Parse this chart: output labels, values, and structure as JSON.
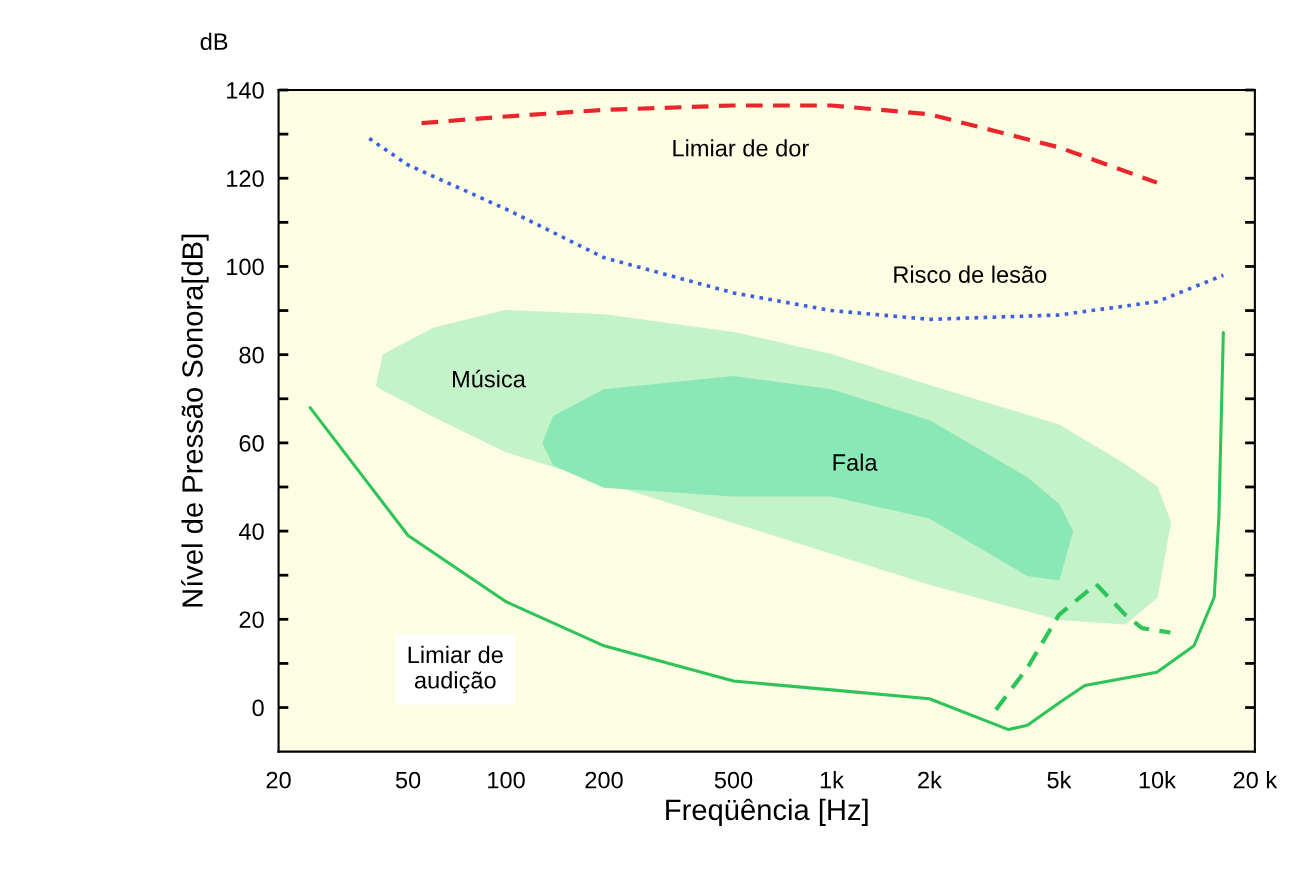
{
  "chart_data": {
    "type": "line",
    "log": "x",
    "xlabel": "Freqüência [Hz]",
    "ylabel": "Nível de Pressão Sonora[dB]",
    "xlim": [
      20,
      20000
    ],
    "ylim": [
      -10,
      140
    ],
    "xticks": [
      20,
      50,
      100,
      200,
      500,
      {
        "value": 1000,
        "label": "1k"
      },
      {
        "value": 2000,
        "label": "2k"
      },
      {
        "value": 5000,
        "label": "5k"
      },
      {
        "value": 10000,
        "label": "10k"
      },
      {
        "value": 20000,
        "label": "20 k"
      }
    ],
    "yticks": [
      0,
      {
        "value": 10,
        "label": null
      },
      20,
      {
        "value": 30,
        "label": null
      },
      40,
      {
        "value": 50,
        "label": null
      },
      60,
      {
        "value": 70,
        "label": null
      },
      80,
      {
        "value": 90,
        "label": null
      },
      100,
      {
        "value": 110,
        "label": null
      },
      120,
      {
        "value": 130,
        "label": null
      },
      140
    ],
    "grid": false,
    "legend": false,
    "series": [
      {
        "type": "area",
        "color": "#c4f3c9",
        "x": [
          40,
          42,
          60,
          100,
          200,
          500,
          1000,
          2000,
          5000,
          8000,
          10000,
          11000,
          10000,
          8000,
          5000,
          2000,
          1000,
          500,
          100,
          60,
          42
        ],
        "values": [
          73,
          80,
          86,
          90,
          89,
          85,
          80,
          73,
          64,
          55,
          50,
          42,
          25,
          19,
          20,
          28,
          35,
          42,
          58,
          66,
          72
        ]
      },
      {
        "type": "area",
        "color": "#8ae8b6",
        "x": [
          130,
          140,
          200,
          500,
          1000,
          2000,
          4000,
          5000,
          5500,
          5000,
          4000,
          2000,
          1000,
          500,
          200,
          140
        ],
        "values": [
          60,
          66,
          72,
          75,
          72,
          65,
          52,
          46,
          40,
          29,
          30,
          43,
          48,
          48,
          50,
          55
        ]
      },
      {
        "type": "line",
        "color": "#e8262b",
        "line_style": "dashed",
        "x": [
          55,
          100,
          200,
          500,
          1000,
          2000,
          5000,
          10000
        ],
        "values": [
          132.5,
          134,
          135.5,
          136.5,
          136.5,
          134.5,
          127,
          119
        ]
      },
      {
        "type": "line",
        "color": "#3a5fe0",
        "line_style": "dotted",
        "x": [
          38,
          50,
          100,
          200,
          500,
          1000,
          2000,
          5000,
          10000,
          16000
        ],
        "values": [
          129,
          123,
          113,
          102,
          94,
          90,
          88,
          89,
          92,
          98
        ]
      },
      {
        "type": "line",
        "color": "#2ec45a",
        "line_style": "solid",
        "x": [
          25,
          50,
          100,
          200,
          500,
          1000,
          2000,
          3500,
          4000,
          5000,
          6000,
          10000,
          13000,
          15000,
          15500,
          16000
        ],
        "values": [
          68,
          39,
          24,
          14,
          6,
          4,
          2,
          -5,
          -4,
          1,
          5,
          8,
          14,
          25,
          43,
          85
        ]
      },
      {
        "type": "line",
        "color": "#2ec45a",
        "line_style": "dashed",
        "x": [
          3200,
          4000,
          5000,
          6500,
          8000,
          9000,
          11000
        ],
        "values": [
          -0.5,
          9,
          21,
          28,
          21,
          18,
          17
        ]
      }
    ],
    "annotations": [
      "dB",
      "Limiar de dor",
      "Risco de lesão",
      "Música",
      "Fala",
      "Limiar de\naudição"
    ]
  }
}
